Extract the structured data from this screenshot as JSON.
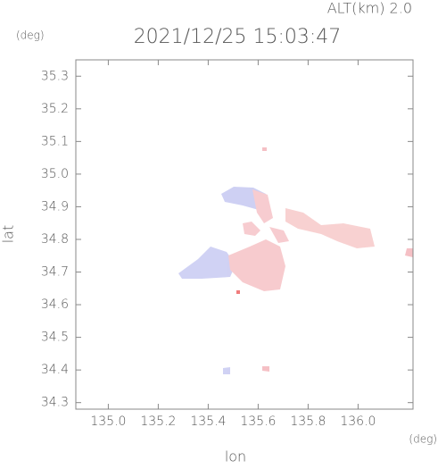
{
  "chart_data": {
    "type": "map",
    "title": "2021/12/25 15:03:47",
    "annotation": "ALT(km)  2.0",
    "x_label": "lon",
    "x_unit": "(deg)",
    "y_label": "lat",
    "y_unit": "(deg)",
    "xlim": [
      134.87,
      136.22
    ],
    "xticks": [
      {
        "value": 135,
        "label": "135.0"
      },
      135.2,
      135.4,
      135.6,
      135.8,
      {
        "value": 136,
        "label": "136.0"
      }
    ],
    "ylim": [
      34.28,
      35.35
    ],
    "yticks": [
      34.3,
      34.4,
      34.5,
      34.6,
      34.7,
      34.8,
      34.9,
      {
        "value": 35,
        "label": "35.0"
      },
      35.1,
      35.2,
      35.3
    ]
  }
}
